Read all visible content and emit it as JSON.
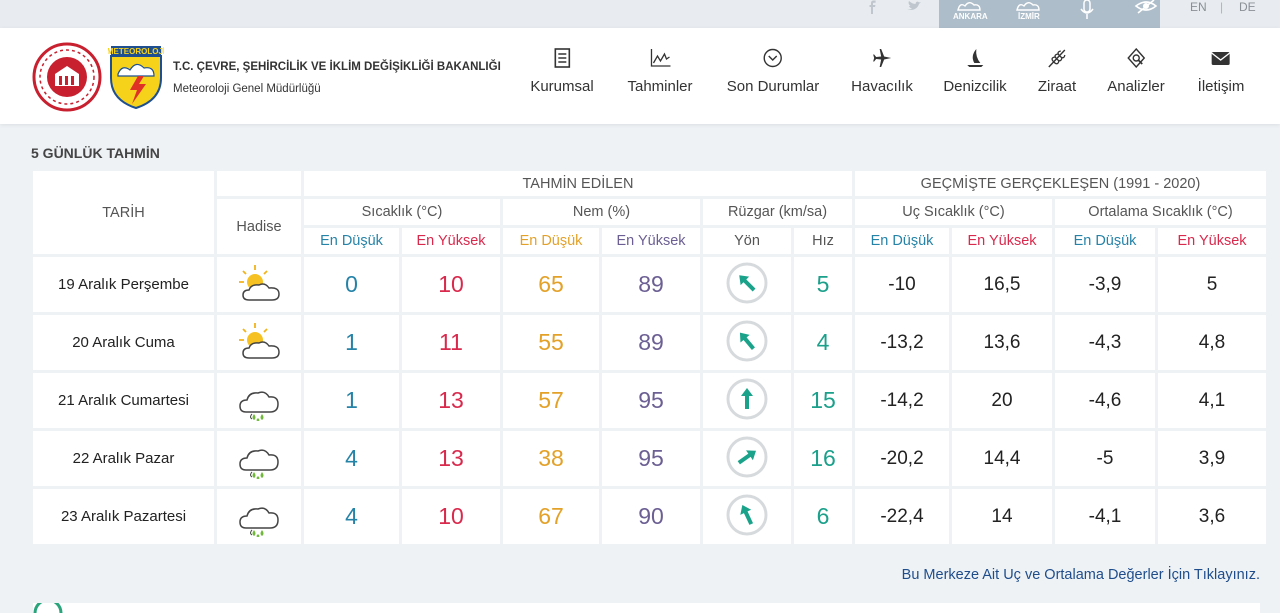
{
  "topbar": {
    "cities": [
      "ANKARA",
      "İZMİR"
    ],
    "languages": [
      "EN",
      "DE"
    ]
  },
  "header": {
    "logo_text": "METEOROLOJİ",
    "ministry": "T.C. ÇEVRE, ŞEHİRCİLİK VE İKLİM DEĞİŞİKLİĞİ BAKANLIĞI",
    "directorate": "Meteoroloji Genel Müdürlüğü"
  },
  "nav": [
    "Kurumsal",
    "Tahminler",
    "Son Durumlar",
    "Havacılık",
    "Denizcilik",
    "Ziraat",
    "Analizler",
    "İletişim"
  ],
  "forecast": {
    "title": "5 GÜNLÜK TAHMİN",
    "headers": {
      "date": "TARİH",
      "group_forecast": "TAHMİN EDİLEN",
      "group_history": "GEÇMİŞTE GERÇEKLEŞEN (1991 - 2020)",
      "event": "Hadise",
      "temperature": "Sıcaklık (°C)",
      "humidity": "Nem (%)",
      "wind": "Rüzgar (km/sa)",
      "extreme": "Uç Sıcaklık (°C)",
      "average": "Ortalama Sıcaklık (°C)",
      "low": "En Düşük",
      "high": "En Yüksek",
      "direction": "Yön",
      "speed": "Hız"
    },
    "rows": [
      {
        "date": "19 Aralık Perşembe",
        "temp_low": "0",
        "temp_high": "10",
        "hum_low": "65",
        "hum_high": "89",
        "wind_speed": "5",
        "extreme_low": "-10",
        "extreme_high": "16,5",
        "avg_low": "-3,9",
        "avg_high": "5"
      },
      {
        "date": "20 Aralık Cuma",
        "temp_low": "1",
        "temp_high": "11",
        "hum_low": "55",
        "hum_high": "89",
        "wind_speed": "4",
        "extreme_low": "-13,2",
        "extreme_high": "13,6",
        "avg_low": "-4,3",
        "avg_high": "4,8"
      },
      {
        "date": "21 Aralık Cumartesi",
        "temp_low": "1",
        "temp_high": "13",
        "hum_low": "57",
        "hum_high": "95",
        "wind_speed": "15",
        "extreme_low": "-14,2",
        "extreme_high": "20",
        "avg_low": "-4,6",
        "avg_high": "4,1"
      },
      {
        "date": "22 Aralık Pazar",
        "temp_low": "4",
        "temp_high": "13",
        "hum_low": "38",
        "hum_high": "95",
        "wind_speed": "16",
        "extreme_low": "-20,2",
        "extreme_high": "14,4",
        "avg_low": "-5",
        "avg_high": "3,9"
      },
      {
        "date": "23 Aralık Pazartesi",
        "temp_low": "4",
        "temp_high": "10",
        "hum_low": "67",
        "hum_high": "90",
        "wind_speed": "6",
        "extreme_low": "-22,4",
        "extreme_high": "14",
        "avg_low": "-4,1",
        "avg_high": "3,6"
      }
    ]
  },
  "link": "Bu Merkeze Ait Uç ve Ortalama Değerler İçin Tıklayınız."
}
